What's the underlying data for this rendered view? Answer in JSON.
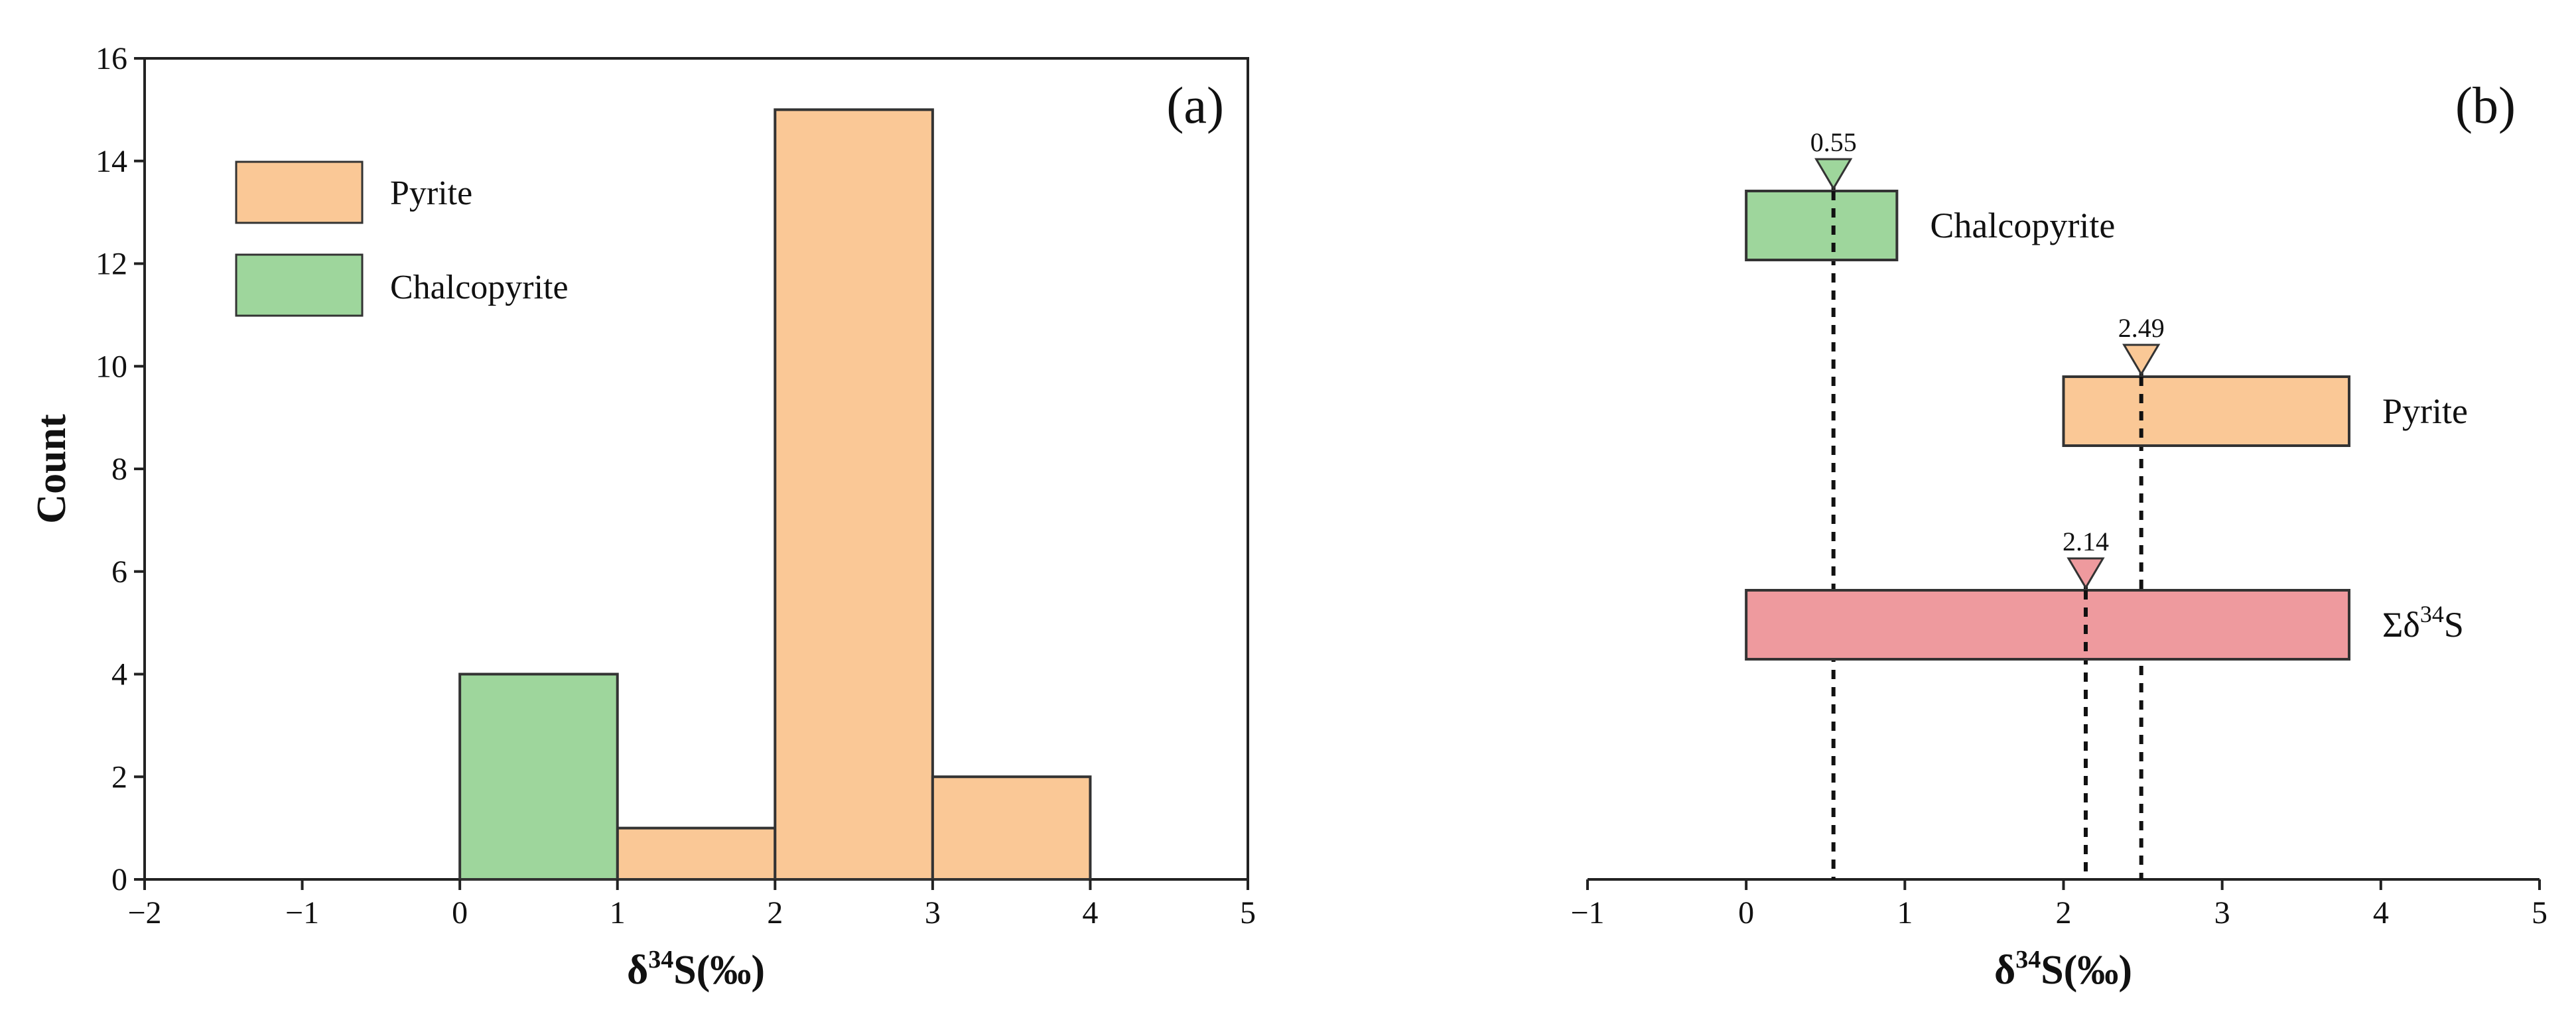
{
  "colors": {
    "pyrite": "#FAC896",
    "chalcopyrite": "#9ED69C",
    "sum": "#EE9A9E",
    "stroke": "#333333"
  },
  "chart_data": [
    {
      "type": "bar",
      "panel_label": "(a)",
      "xlabel": {
        "main": "δ",
        "sup": "34",
        "after": "S(‰)"
      },
      "ylabel": "Count",
      "xlim": [
        -2,
        5
      ],
      "ylim": [
        0,
        16
      ],
      "xticks": [
        -2,
        -1,
        0,
        1,
        2,
        3,
        4,
        5
      ],
      "xtick_labels": [
        "−2",
        "−1",
        "0",
        "1",
        "2",
        "3",
        "4",
        "5"
      ],
      "yticks": [
        0,
        2,
        4,
        6,
        8,
        10,
        12,
        14,
        16
      ],
      "legend": {
        "placement": "top-left",
        "items": [
          {
            "label": "Pyrite",
            "color_key": "pyrite"
          },
          {
            "label": "Chalcopyrite",
            "color_key": "chalcopyrite"
          }
        ]
      },
      "series": [
        {
          "name": "Pyrite",
          "color_key": "pyrite",
          "bins": [
            {
              "x0": 1,
              "x1": 2,
              "count": 1
            },
            {
              "x0": 2,
              "x1": 3,
              "count": 15
            },
            {
              "x0": 3,
              "x1": 4,
              "count": 2
            }
          ]
        },
        {
          "name": "Chalcopyrite",
          "color_key": "chalcopyrite",
          "bins": [
            {
              "x0": 0,
              "x1": 1,
              "count": 4
            }
          ]
        }
      ]
    },
    {
      "type": "range",
      "panel_label": "(b)",
      "xlabel": {
        "main": "δ",
        "sup": "34",
        "after": "S(‰)"
      },
      "xlim": [
        -1,
        5
      ],
      "xticks": [
        -1,
        0,
        1,
        2,
        3,
        4,
        5
      ],
      "xtick_labels": [
        "−1",
        "0",
        "1",
        "2",
        "3",
        "4",
        "5"
      ],
      "ranges": [
        {
          "label": "Chalcopyrite",
          "label_parts": [
            "Chalcopyrite"
          ],
          "color_key": "chalcopyrite",
          "min": 0.0,
          "max": 0.95,
          "mean": 0.55,
          "mean_label": "0.55"
        },
        {
          "label": "Pyrite",
          "label_parts": [
            "Pyrite"
          ],
          "color_key": "pyrite",
          "min": 2.0,
          "max": 3.8,
          "mean": 2.49,
          "mean_label": "2.49"
        },
        {
          "label": "Σδ34S",
          "label_parts": [
            "Σδ",
            "34",
            "S"
          ],
          "color_key": "sum",
          "min": 0.0,
          "max": 3.8,
          "mean": 2.14,
          "mean_label": "2.14"
        }
      ]
    }
  ]
}
